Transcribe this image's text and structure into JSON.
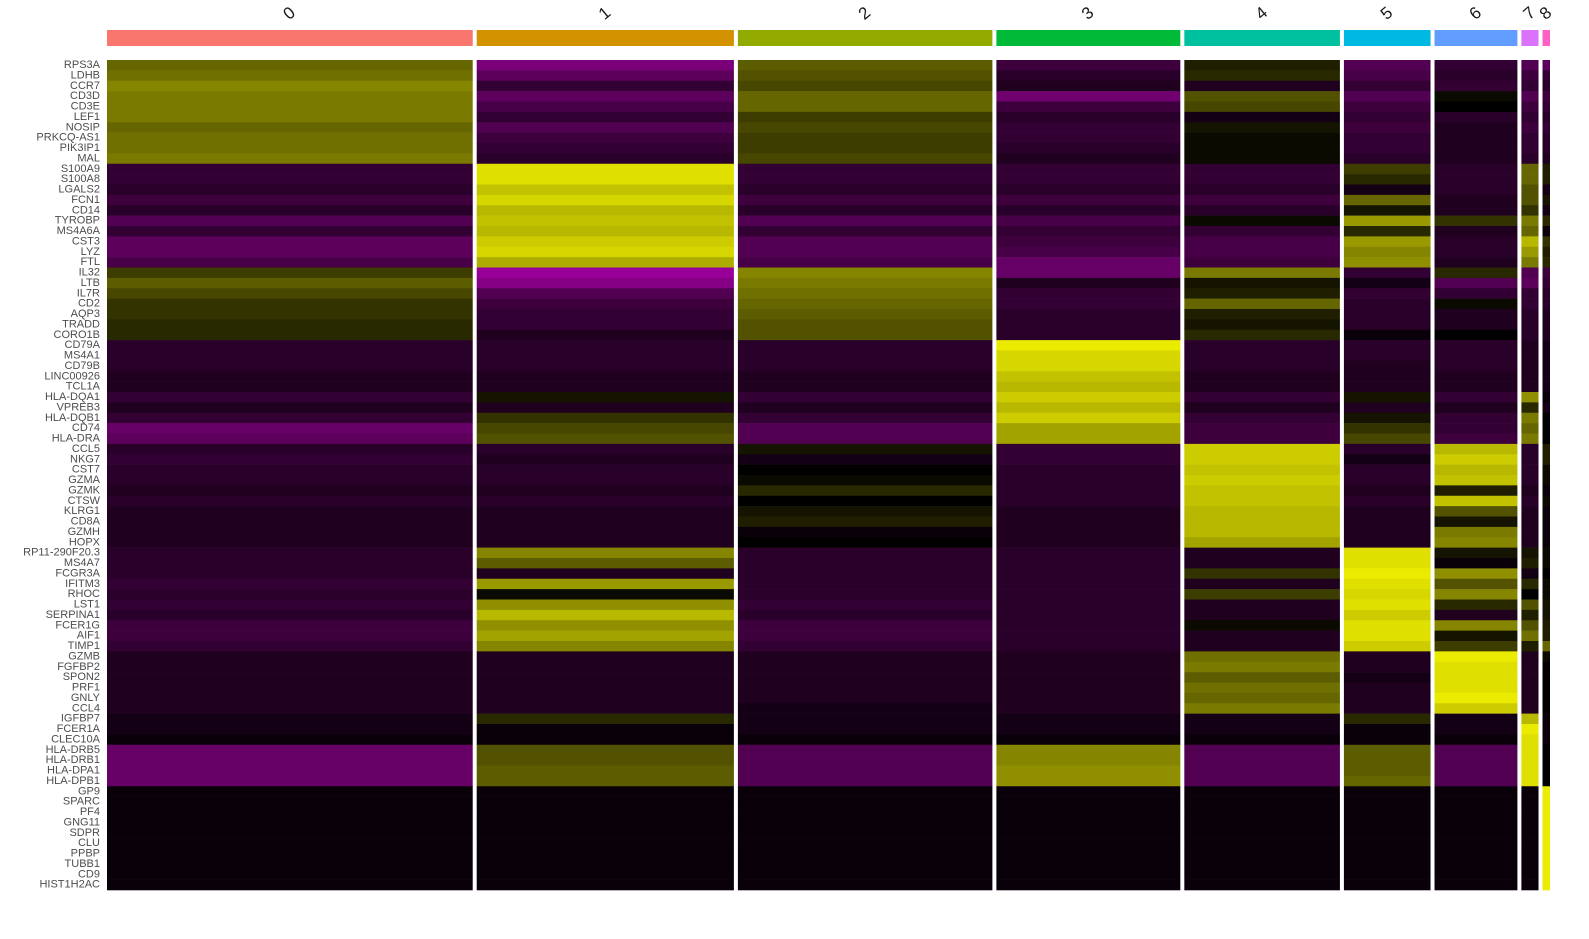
{
  "chart_data": {
    "type": "heatmap",
    "clusters": [
      "0",
      "1",
      "2",
      "3",
      "4",
      "5",
      "6",
      "7",
      "8"
    ],
    "cluster_colors": [
      "#F8766D",
      "#D39200",
      "#93AA00",
      "#00BA38",
      "#00C19F",
      "#00B9E3",
      "#619CFF",
      "#DB72FB",
      "#FF61C3"
    ],
    "cell_counts": [
      684,
      481,
      476,
      344,
      291,
      162,
      155,
      32,
      14
    ],
    "genes": [
      "RPS3A",
      "LDHB",
      "CCR7",
      "CD3D",
      "CD3E",
      "LEF1",
      "NOSIP",
      "PRKCQ-AS1",
      "PIK3IP1",
      "MAL",
      "S100A9",
      "S100A8",
      "LGALS2",
      "FCN1",
      "CD14",
      "TYROBP",
      "MS4A6A",
      "CST3",
      "LYZ",
      "FTL",
      "IL32",
      "LTB",
      "IL7R",
      "CD2",
      "AQP3",
      "TRADD",
      "CORO1B",
      "CD79A",
      "MS4A1",
      "CD79B",
      "LINC00926",
      "TCL1A",
      "HLA-DQA1",
      "VPREB3",
      "HLA-DQB1",
      "CD74",
      "HLA-DRA",
      "CCL5",
      "NKG7",
      "CST7",
      "GZMA",
      "GZMK",
      "CTSW",
      "KLRG1",
      "CD8A",
      "GZMH",
      "HOPX",
      "RP11-290F20.3",
      "MS4A7",
      "FCGR3A",
      "IFITM3",
      "RHOC",
      "LST1",
      "SERPINA1",
      "FCER1G",
      "AIF1",
      "TIMP1",
      "GZMB",
      "FGFBP2",
      "SPON2",
      "PRF1",
      "GNLY",
      "CCL4",
      "IGFBP7",
      "FCER1A",
      "CLEC10A",
      "HLA-DRB5",
      "HLA-DRB1",
      "HLA-DPA1",
      "HLA-DPB1",
      "GP9",
      "SPARC",
      "PF4",
      "GNG11",
      "SDPR",
      "CLU",
      "PPBP",
      "TUBB1",
      "CD9",
      "HIST1H2AC"
    ],
    "colors": [
      "#FF00FF",
      "#000000",
      "#FFFF00"
    ],
    "clim": [
      -2.5,
      2.5
    ],
    "matrix": [
      [
        1.0,
        -1.2,
        0.9,
        -0.6,
        0.3,
        -0.8,
        -0.5,
        -0.8,
        -0.9
      ],
      [
        1.1,
        -0.9,
        0.8,
        -0.4,
        0.4,
        -0.7,
        -0.4,
        -0.6,
        -0.5
      ],
      [
        1.3,
        -0.5,
        0.7,
        -0.3,
        -0.3,
        -0.5,
        -0.5,
        -0.5,
        -0.4
      ],
      [
        1.2,
        -0.9,
        1.0,
        -1.1,
        0.8,
        -0.8,
        0.1,
        -0.8,
        -0.6
      ],
      [
        1.2,
        -0.7,
        1.0,
        -0.6,
        0.7,
        -0.6,
        0.0,
        -0.6,
        -0.5
      ],
      [
        1.2,
        -0.5,
        0.6,
        -0.4,
        -0.2,
        -0.5,
        -0.4,
        -0.5,
        -0.4
      ],
      [
        1.0,
        -0.8,
        0.7,
        -0.5,
        0.2,
        -0.6,
        -0.3,
        -0.6,
        -0.5
      ],
      [
        1.1,
        -0.6,
        0.6,
        -0.5,
        0.1,
        -0.5,
        -0.3,
        -0.5,
        -0.4
      ],
      [
        1.1,
        -0.5,
        0.6,
        -0.4,
        0.1,
        -0.5,
        -0.3,
        -0.5,
        -0.4
      ],
      [
        1.2,
        -0.4,
        0.7,
        -0.3,
        0.1,
        -0.4,
        -0.3,
        -0.4,
        -0.3
      ],
      [
        -0.5,
        2.2,
        -0.5,
        -0.5,
        -0.5,
        0.6,
        -0.4,
        1.0,
        0.3
      ],
      [
        -0.5,
        2.2,
        -0.5,
        -0.5,
        -0.5,
        0.4,
        -0.4,
        1.0,
        0.3
      ],
      [
        -0.4,
        1.9,
        -0.4,
        -0.4,
        -0.4,
        -0.2,
        -0.4,
        0.8,
        -0.2
      ],
      [
        -0.6,
        2.1,
        -0.6,
        -0.6,
        -0.6,
        1.0,
        -0.3,
        0.8,
        0.2
      ],
      [
        -0.4,
        1.8,
        -0.4,
        -0.4,
        -0.4,
        0.2,
        -0.3,
        0.5,
        -0.2
      ],
      [
        -0.8,
        1.9,
        -0.8,
        -0.7,
        0.1,
        1.5,
        0.5,
        1.2,
        0.4
      ],
      [
        -0.5,
        1.8,
        -0.5,
        -0.5,
        -0.5,
        0.4,
        -0.3,
        1.0,
        -0.1
      ],
      [
        -0.9,
        2.0,
        -0.8,
        -0.6,
        -0.7,
        1.5,
        -0.4,
        1.8,
        0.5
      ],
      [
        -0.9,
        2.1,
        -0.8,
        -0.7,
        -0.7,
        1.3,
        -0.4,
        1.5,
        0.3
      ],
      [
        -0.7,
        1.7,
        -0.7,
        -1.0,
        -0.6,
        1.4,
        -0.3,
        1.2,
        0.4
      ],
      [
        0.6,
        -1.5,
        1.3,
        -1.0,
        1.2,
        -0.5,
        0.4,
        -0.8,
        -0.6
      ],
      [
        0.9,
        -1.3,
        1.2,
        -0.3,
        0.2,
        -0.2,
        -0.8,
        -0.9,
        -0.5
      ],
      [
        0.7,
        -0.8,
        1.1,
        -0.5,
        0.3,
        -0.5,
        -0.5,
        -0.5,
        -0.4
      ],
      [
        0.5,
        -0.6,
        1.0,
        -0.5,
        1.0,
        -0.4,
        0.1,
        -0.5,
        -0.4
      ],
      [
        0.5,
        -0.5,
        0.9,
        -0.4,
        0.3,
        -0.4,
        -0.3,
        -0.4,
        -0.3
      ],
      [
        0.4,
        -0.5,
        0.8,
        -0.4,
        0.2,
        -0.4,
        -0.3,
        -0.4,
        -0.3
      ],
      [
        0.4,
        -0.3,
        0.8,
        -0.4,
        0.4,
        -0.1,
        0.0,
        -0.4,
        -0.3
      ],
      [
        -0.4,
        -0.4,
        -0.4,
        2.3,
        -0.4,
        -0.4,
        -0.4,
        -0.3,
        -0.2
      ],
      [
        -0.4,
        -0.4,
        -0.4,
        2.1,
        -0.4,
        -0.4,
        -0.4,
        -0.3,
        -0.2
      ],
      [
        -0.4,
        -0.4,
        -0.4,
        2.1,
        -0.4,
        -0.3,
        -0.4,
        -0.3,
        -0.2
      ],
      [
        -0.3,
        -0.3,
        -0.3,
        1.9,
        -0.3,
        -0.3,
        -0.3,
        -0.3,
        -0.2
      ],
      [
        -0.3,
        -0.3,
        -0.3,
        1.8,
        -0.3,
        -0.3,
        -0.3,
        -0.3,
        -0.2
      ],
      [
        -0.5,
        0.2,
        -0.5,
        2.0,
        -0.5,
        0.2,
        -0.5,
        1.4,
        -0.1
      ],
      [
        -0.3,
        -0.3,
        -0.3,
        1.8,
        -0.3,
        -0.3,
        -0.3,
        0.4,
        -0.2
      ],
      [
        -0.5,
        0.5,
        -0.5,
        2.0,
        -0.5,
        0.2,
        -0.5,
        1.2,
        0.0
      ],
      [
        -1.0,
        0.7,
        -0.8,
        1.6,
        -0.6,
        0.5,
        -0.5,
        1.0,
        0.0
      ],
      [
        -0.9,
        0.8,
        -0.8,
        1.6,
        -0.6,
        0.7,
        -0.6,
        1.2,
        0.0
      ],
      [
        -0.4,
        -0.4,
        0.2,
        -0.5,
        2.0,
        -0.4,
        1.8,
        -0.4,
        0.3
      ],
      [
        -0.5,
        -0.3,
        -0.2,
        -0.5,
        2.0,
        -0.2,
        2.0,
        -0.4,
        0.3
      ],
      [
        -0.4,
        -0.4,
        0.0,
        -0.4,
        1.9,
        -0.4,
        1.8,
        -0.4,
        0.1
      ],
      [
        -0.4,
        -0.4,
        0.1,
        -0.4,
        2.0,
        -0.4,
        1.9,
        -0.4,
        0.1
      ],
      [
        -0.3,
        -0.3,
        0.4,
        -0.4,
        1.9,
        -0.3,
        0.3,
        -0.3,
        -0.1
      ],
      [
        -0.4,
        -0.4,
        0.0,
        -0.4,
        1.9,
        -0.4,
        1.9,
        -0.4,
        0.1
      ],
      [
        -0.3,
        -0.3,
        0.2,
        -0.3,
        1.8,
        -0.3,
        0.8,
        -0.3,
        -0.1
      ],
      [
        -0.3,
        -0.3,
        0.3,
        -0.3,
        1.8,
        -0.3,
        0.2,
        -0.3,
        -0.1
      ],
      [
        -0.3,
        -0.3,
        -0.1,
        -0.3,
        1.8,
        -0.3,
        1.2,
        -0.3,
        -0.1
      ],
      [
        -0.3,
        -0.3,
        0.0,
        -0.3,
        1.6,
        -0.3,
        1.3,
        -0.3,
        -0.1
      ],
      [
        -0.4,
        1.3,
        -0.4,
        -0.4,
        -0.3,
        2.2,
        0.2,
        0.2,
        0.1
      ],
      [
        -0.4,
        0.9,
        -0.4,
        -0.4,
        -0.3,
        2.2,
        -0.1,
        0.3,
        0.1
      ],
      [
        -0.4,
        -0.3,
        -0.4,
        -0.4,
        0.5,
        2.3,
        1.4,
        -0.2,
        0.0
      ],
      [
        -0.5,
        1.5,
        -0.4,
        -0.4,
        -0.3,
        2.2,
        0.8,
        0.4,
        0.1
      ],
      [
        -0.4,
        0.1,
        -0.4,
        -0.4,
        0.6,
        2.1,
        1.3,
        0.0,
        0.1
      ],
      [
        -0.5,
        1.4,
        -0.5,
        -0.4,
        -0.3,
        2.2,
        0.4,
        0.8,
        0.2
      ],
      [
        -0.4,
        1.8,
        -0.4,
        -0.4,
        -0.3,
        2.0,
        -0.3,
        0.3,
        0.2
      ],
      [
        -0.6,
        1.4,
        -0.6,
        -0.4,
        0.1,
        2.2,
        1.3,
        0.8,
        0.3
      ],
      [
        -0.6,
        1.6,
        -0.6,
        -0.4,
        -0.3,
        2.2,
        0.2,
        1.1,
        0.3
      ],
      [
        -0.5,
        1.3,
        -0.5,
        -0.4,
        -0.3,
        2.0,
        0.6,
        0.3,
        1.0
      ],
      [
        -0.3,
        -0.3,
        -0.3,
        -0.3,
        1.1,
        -0.3,
        2.3,
        -0.3,
        0.1
      ],
      [
        -0.3,
        -0.3,
        -0.3,
        -0.3,
        1.2,
        -0.3,
        2.2,
        -0.3,
        0.0
      ],
      [
        -0.3,
        -0.3,
        -0.3,
        -0.3,
        0.9,
        -0.2,
        2.2,
        -0.3,
        0.0
      ],
      [
        -0.3,
        -0.3,
        -0.3,
        -0.3,
        1.1,
        -0.3,
        2.2,
        -0.3,
        0.0
      ],
      [
        -0.3,
        -0.3,
        -0.3,
        -0.3,
        1.0,
        -0.3,
        2.3,
        -0.3,
        0.0
      ],
      [
        -0.3,
        -0.3,
        -0.2,
        -0.3,
        1.2,
        -0.3,
        2.0,
        -0.3,
        0.0
      ],
      [
        -0.2,
        0.4,
        -0.2,
        -0.2,
        -0.2,
        0.4,
        -0.2,
        1.8,
        -0.1
      ],
      [
        -0.2,
        -0.1,
        -0.2,
        -0.2,
        -0.2,
        -0.1,
        -0.2,
        2.3,
        -0.1
      ],
      [
        -0.1,
        -0.1,
        -0.1,
        -0.1,
        -0.1,
        -0.1,
        -0.1,
        2.2,
        -0.1
      ],
      [
        -1.0,
        0.8,
        -0.8,
        1.3,
        -0.8,
        0.9,
        -0.8,
        2.2,
        0.0
      ],
      [
        -1.0,
        0.8,
        -0.8,
        1.3,
        -0.8,
        0.9,
        -0.8,
        2.2,
        0.0
      ],
      [
        -1.0,
        0.9,
        -0.8,
        1.4,
        -0.8,
        0.9,
        -0.8,
        2.2,
        0.0
      ],
      [
        -1.0,
        0.9,
        -0.8,
        1.4,
        -0.8,
        1.0,
        -0.8,
        2.2,
        0.0
      ],
      [
        -0.1,
        -0.1,
        -0.1,
        -0.1,
        -0.1,
        -0.1,
        -0.1,
        -0.1,
        2.3
      ],
      [
        -0.1,
        -0.1,
        -0.1,
        -0.1,
        -0.1,
        -0.1,
        -0.1,
        -0.1,
        2.3
      ],
      [
        -0.1,
        -0.1,
        -0.1,
        -0.1,
        -0.1,
        -0.1,
        -0.1,
        -0.1,
        2.3
      ],
      [
        -0.1,
        -0.1,
        -0.1,
        -0.1,
        -0.1,
        -0.1,
        -0.1,
        -0.1,
        2.3
      ],
      [
        -0.1,
        -0.1,
        -0.1,
        -0.1,
        -0.1,
        -0.1,
        -0.1,
        -0.1,
        2.3
      ],
      [
        -0.1,
        -0.1,
        -0.1,
        -0.1,
        -0.1,
        -0.1,
        -0.1,
        -0.1,
        2.3
      ],
      [
        -0.1,
        -0.1,
        -0.1,
        -0.1,
        -0.1,
        -0.1,
        -0.1,
        -0.1,
        2.3
      ],
      [
        -0.1,
        -0.1,
        -0.1,
        -0.1,
        -0.1,
        -0.1,
        -0.1,
        -0.1,
        2.3
      ],
      [
        -0.1,
        -0.1,
        -0.1,
        -0.1,
        -0.1,
        -0.1,
        -0.1,
        -0.1,
        2.3
      ],
      [
        -0.1,
        -0.1,
        -0.1,
        -0.1,
        -0.1,
        -0.1,
        -0.1,
        -0.1,
        2.3
      ]
    ]
  }
}
